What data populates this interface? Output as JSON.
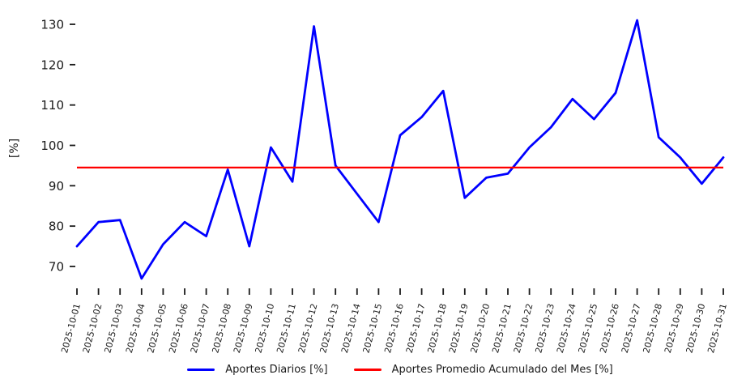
{
  "chart_data": {
    "type": "line",
    "title": "",
    "xlabel": "",
    "ylabel": "[%]",
    "ylim": [
      65,
      133
    ],
    "yticks": [
      70,
      80,
      90,
      100,
      110,
      120,
      130
    ],
    "grid": false,
    "legend_position": "bottom-center",
    "text_color": "#1a1a1a",
    "categories": [
      "2025-10-01",
      "2025-10-02",
      "2025-10-03",
      "2025-10-04",
      "2025-10-05",
      "2025-10-06",
      "2025-10-07",
      "2025-10-08",
      "2025-10-09",
      "2025-10-10",
      "2025-10-11",
      "2025-10-12",
      "2025-10-13",
      "2025-10-14",
      "2025-10-15",
      "2025-10-16",
      "2025-10-17",
      "2025-10-18",
      "2025-10-19",
      "2025-10-20",
      "2025-10-21",
      "2025-10-22",
      "2025-10-23",
      "2025-10-24",
      "2025-10-25",
      "2025-10-26",
      "2025-10-27",
      "2025-10-28",
      "2025-10-29",
      "2025-10-30",
      "2025-10-31"
    ],
    "series": [
      {
        "name": "Aportes Diarios [%]",
        "type": "line",
        "color": "#0000ff",
        "values": [
          75,
          81,
          81.5,
          67,
          75.5,
          81,
          77.5,
          94,
          75,
          99.5,
          91,
          129.5,
          95,
          88,
          81,
          102.5,
          107,
          113.5,
          87,
          92,
          93,
          99.5,
          104.5,
          111.5,
          106.5,
          113,
          131,
          102,
          97,
          90.5,
          97
        ]
      },
      {
        "name": "Aportes Promedio Acumulado del Mes [%]",
        "type": "hline",
        "color": "#ff0000",
        "value": 94.5
      }
    ]
  }
}
